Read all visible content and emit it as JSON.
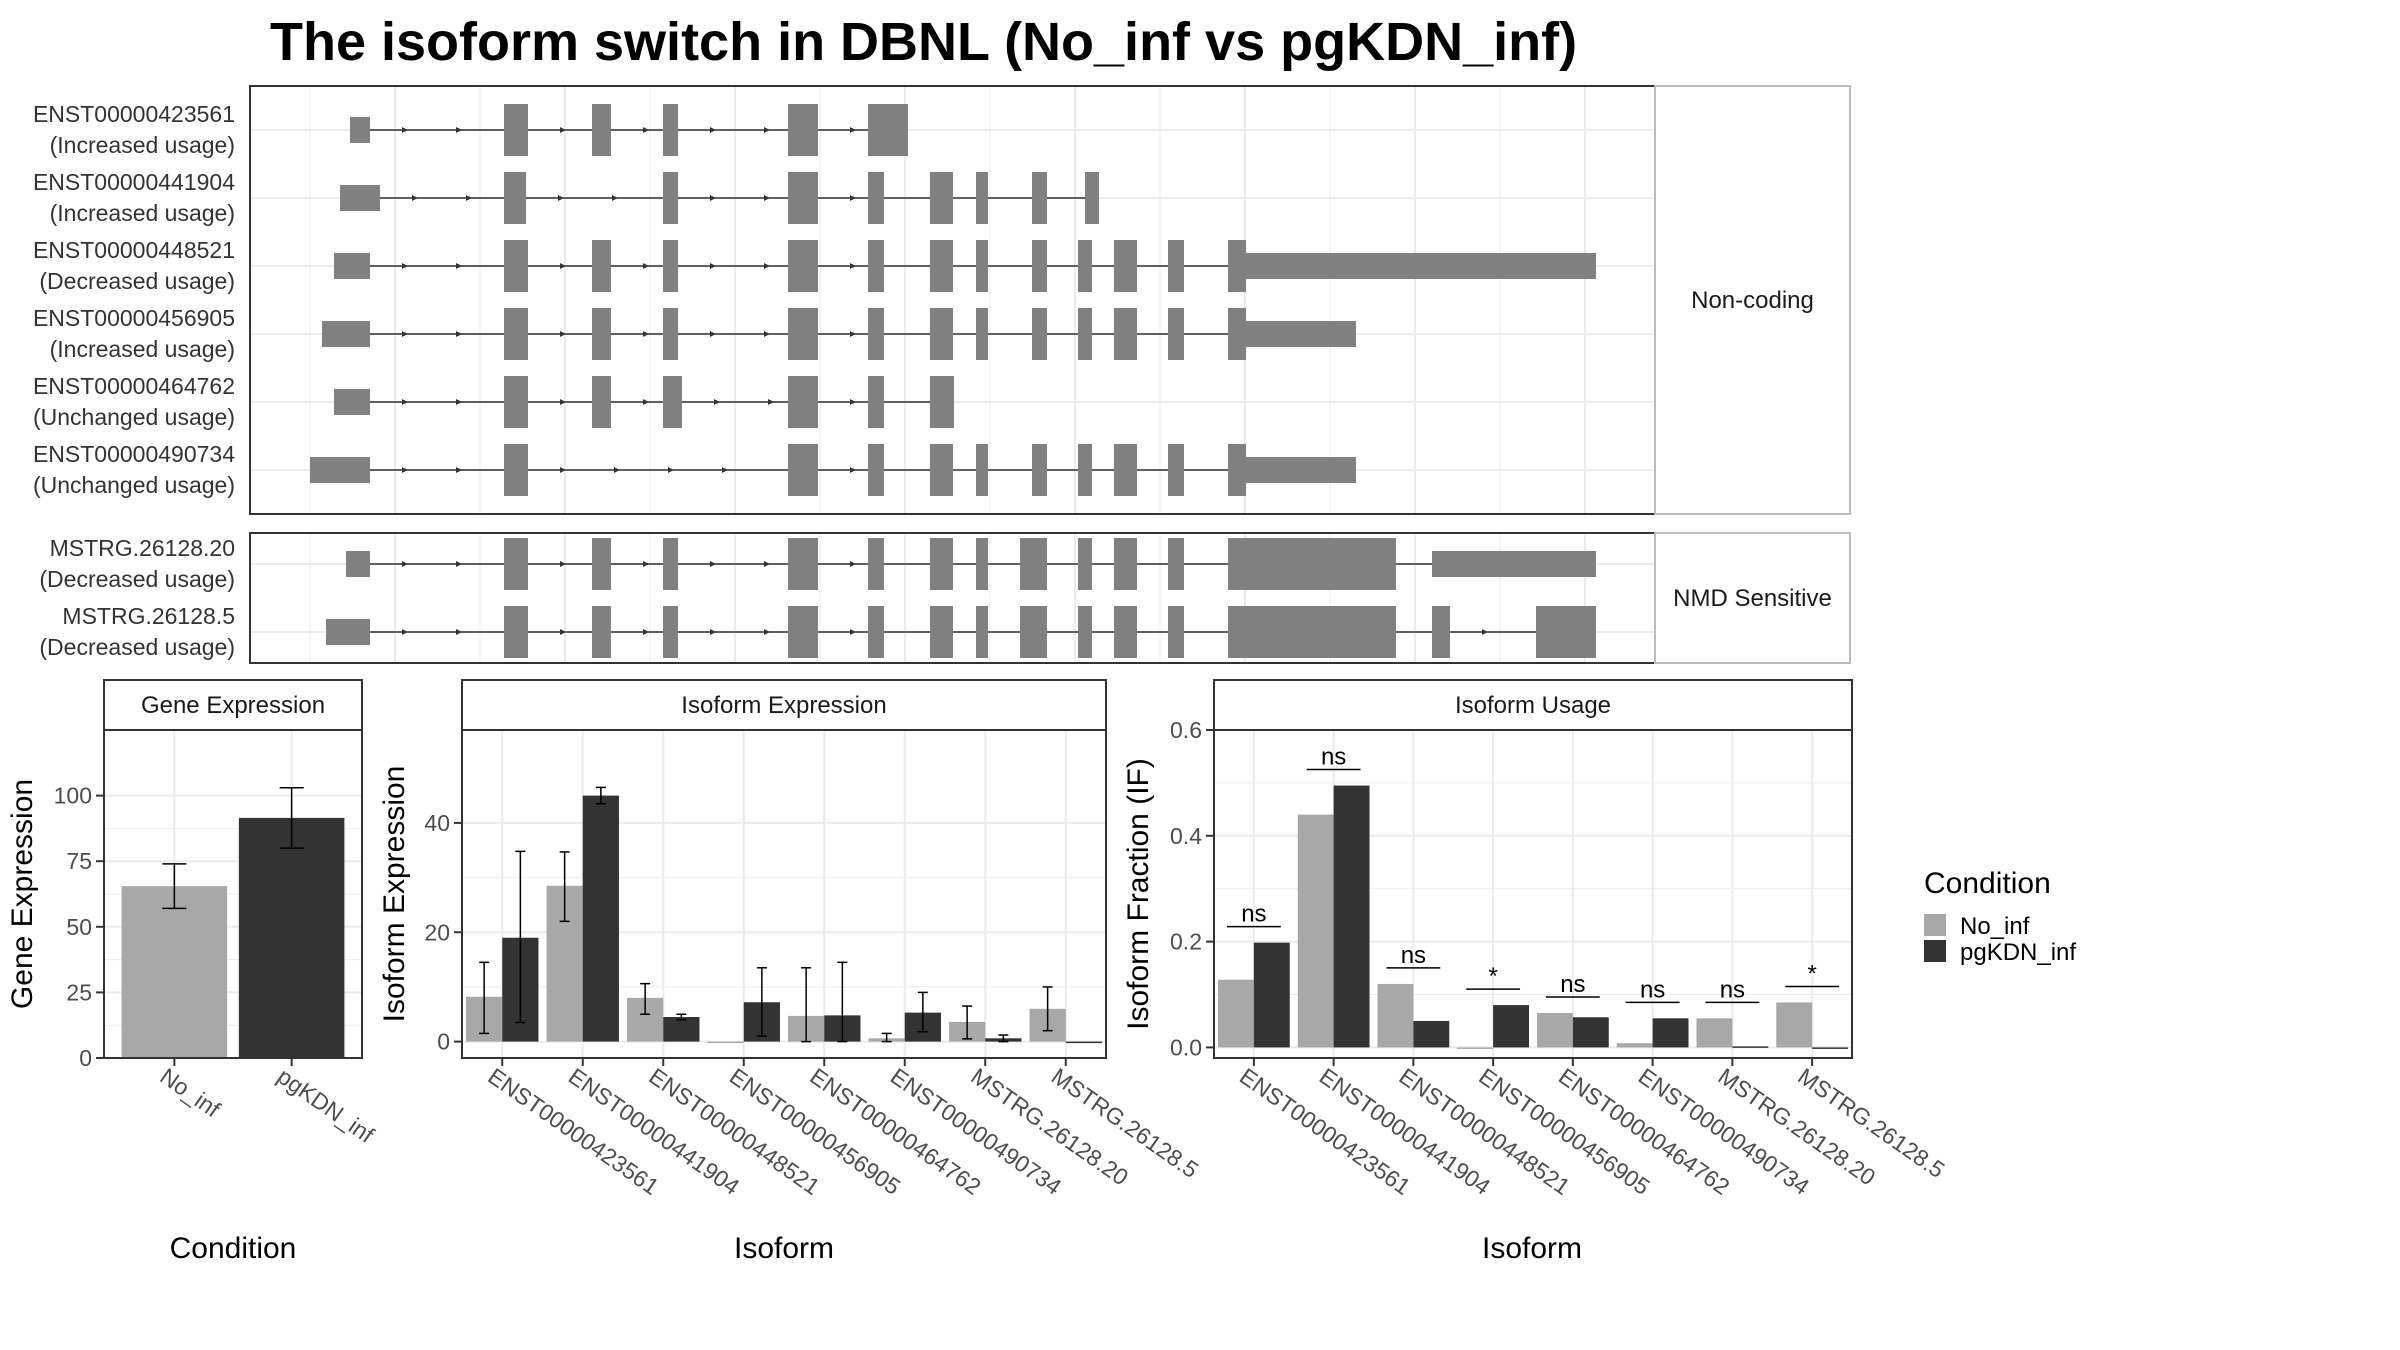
{
  "title": "The isoform switch in DBNL (No_inf vs pgKDN_inf)",
  "colors": {
    "No_inf": "#a8a8a8",
    "pgKDN_inf": "#333333",
    "exon": "#808080",
    "grid": "#ebebeb"
  },
  "structure": {
    "panels": [
      {
        "label": "Non-coding",
        "isoforms": [
          {
            "name": "ENST00000423561",
            "usage": "(Increased usage)",
            "exons": [
              [
                350,
                370
              ],
              [
                504,
                528
              ],
              [
                592,
                611
              ],
              [
                663,
                678
              ],
              [
                788,
                818
              ],
              [
                868,
                900
              ],
              [
                900,
                908
              ]
            ]
          },
          {
            "name": "ENST00000441904",
            "usage": "(Increased usage)",
            "exons": [
              [
                340,
                380
              ],
              [
                504,
                526
              ],
              [
                663,
                678
              ],
              [
                788,
                818
              ],
              [
                868,
                884
              ],
              [
                930,
                953
              ],
              [
                976,
                988
              ],
              [
                1032,
                1047
              ],
              [
                1085,
                1099
              ]
            ]
          },
          {
            "name": "ENST00000448521",
            "usage": "(Decreased usage)",
            "exons": [
              [
                334,
                370
              ],
              [
                504,
                528
              ],
              [
                592,
                611
              ],
              [
                663,
                678
              ],
              [
                788,
                818
              ],
              [
                868,
                884
              ],
              [
                930,
                953
              ],
              [
                976,
                988
              ],
              [
                1032,
                1047
              ],
              [
                1078,
                1092
              ],
              [
                1114,
                1137
              ],
              [
                1168,
                1184
              ],
              [
                1228,
                1246
              ],
              [
                1246,
                1596
              ]
            ]
          },
          {
            "name": "ENST00000456905",
            "usage": "(Increased usage)",
            "exons": [
              [
                322,
                370
              ],
              [
                504,
                528
              ],
              [
                592,
                611
              ],
              [
                663,
                678
              ],
              [
                788,
                818
              ],
              [
                868,
                884
              ],
              [
                930,
                953
              ],
              [
                976,
                988
              ],
              [
                1032,
                1047
              ],
              [
                1078,
                1092
              ],
              [
                1114,
                1137
              ],
              [
                1168,
                1184
              ],
              [
                1228,
                1246
              ],
              [
                1246,
                1356
              ]
            ]
          },
          {
            "name": "ENST00000464762",
            "usage": "(Unchanged usage)",
            "exons": [
              [
                334,
                370
              ],
              [
                504,
                528
              ],
              [
                592,
                611
              ],
              [
                663,
                682
              ],
              [
                788,
                818
              ],
              [
                868,
                884
              ],
              [
                930,
                954
              ]
            ]
          },
          {
            "name": "ENST00000490734",
            "usage": "(Unchanged usage)",
            "exons": [
              [
                310,
                370
              ],
              [
                504,
                528
              ],
              [
                788,
                818
              ],
              [
                868,
                884
              ],
              [
                930,
                953
              ],
              [
                976,
                988
              ],
              [
                1032,
                1047
              ],
              [
                1078,
                1092
              ],
              [
                1114,
                1137
              ],
              [
                1168,
                1184
              ],
              [
                1228,
                1246
              ],
              [
                1246,
                1356
              ]
            ]
          }
        ]
      },
      {
        "label": "NMD Sensitive",
        "isoforms": [
          {
            "name": "MSTRG.26128.20",
            "usage": "(Decreased usage)",
            "exons": [
              [
                346,
                370
              ],
              [
                504,
                528
              ],
              [
                592,
                611
              ],
              [
                663,
                678
              ],
              [
                788,
                818
              ],
              [
                868,
                884
              ],
              [
                930,
                953
              ],
              [
                976,
                988
              ],
              [
                1020,
                1047
              ],
              [
                1078,
                1092
              ],
              [
                1114,
                1137
              ],
              [
                1168,
                1184
              ],
              [
                1228,
                1246
              ],
              [
                1246,
                1396
              ],
              [
                1432,
                1596
              ]
            ]
          },
          {
            "name": "MSTRG.26128.5",
            "usage": "(Decreased usage)",
            "exons": [
              [
                326,
                370
              ],
              [
                504,
                528
              ],
              [
                592,
                611
              ],
              [
                663,
                678
              ],
              [
                788,
                818
              ],
              [
                868,
                884
              ],
              [
                930,
                953
              ],
              [
                976,
                988
              ],
              [
                1020,
                1047
              ],
              [
                1078,
                1092
              ],
              [
                1114,
                1137
              ],
              [
                1168,
                1184
              ],
              [
                1228,
                1246
              ],
              [
                1246,
                1396
              ],
              [
                1432,
                1450
              ],
              [
                1536,
                1596
              ]
            ]
          }
        ]
      }
    ]
  },
  "chart_data": [
    {
      "type": "bar",
      "strip": "Gene Expression",
      "xlabel": "Condition",
      "ylabel": "Gene Expression",
      "categories": [
        "No_inf",
        "pgKDN_inf"
      ],
      "values": [
        65.5,
        91.5
      ],
      "errors": [
        [
          57,
          74
        ],
        [
          80,
          103
        ]
      ],
      "ylim": [
        0,
        125
      ],
      "yticks": [
        0,
        25,
        50,
        75,
        100
      ]
    },
    {
      "type": "bar",
      "strip": "Isoform Expression",
      "xlabel": "Isoform",
      "ylabel": "Isoform Expression",
      "categories": [
        "ENST00000423561",
        "ENST00000441904",
        "ENST00000448521",
        "ENST00000456905",
        "ENST00000464762",
        "ENST00000490734",
        "MSTRG.26128.20",
        "MSTRG.26128.5"
      ],
      "series": [
        {
          "name": "No_inf",
          "values": [
            8.2,
            28.5,
            8,
            0,
            4.7,
            0.6,
            3.6,
            6
          ],
          "errors": [
            [
              1.5,
              14.5
            ],
            [
              22,
              34.7
            ],
            [
              5,
              10.6
            ],
            [
              0,
              0
            ],
            [
              0,
              13.5
            ],
            [
              0,
              1.5
            ],
            [
              0.5,
              6.5
            ],
            [
              2,
              10
            ]
          ]
        },
        {
          "name": "pgKDN_inf",
          "values": [
            19,
            45,
            4.5,
            7.2,
            4.8,
            5.3,
            0.6,
            0
          ],
          "errors": [
            [
              3.5,
              34.8
            ],
            [
              43.5,
              46.5
            ],
            [
              4,
              5
            ],
            [
              1,
              13.5
            ],
            [
              0,
              14.5
            ],
            [
              1.8,
              9
            ],
            [
              0,
              1.2
            ],
            [
              0,
              0
            ]
          ]
        }
      ],
      "ylim": [
        -3,
        57
      ],
      "yticks": [
        0,
        20,
        40
      ]
    },
    {
      "type": "bar",
      "strip": "Isoform Usage",
      "xlabel": "Isoform",
      "ylabel": "Isoform Fraction (IF)",
      "categories": [
        "ENST00000423561",
        "ENST00000441904",
        "ENST00000448521",
        "ENST00000456905",
        "ENST00000464762",
        "ENST00000490734",
        "MSTRG.26128.20",
        "MSTRG.26128.5"
      ],
      "series": [
        {
          "name": "No_inf",
          "values": [
            0.128,
            0.44,
            0.12,
            0.0,
            0.065,
            0.008,
            0.055,
            0.085
          ]
        },
        {
          "name": "pgKDN_inf",
          "values": [
            0.198,
            0.495,
            0.05,
            0.08,
            0.057,
            0.055,
            0.002,
            0.0
          ]
        }
      ],
      "significance": [
        "ns",
        "ns",
        "ns",
        "*",
        "ns",
        "ns",
        "ns",
        "*"
      ],
      "ylim": [
        -0.02,
        0.6
      ],
      "yticks": [
        0.0,
        0.2,
        0.4,
        0.6
      ]
    }
  ],
  "legend": {
    "title": "Condition",
    "items": [
      "No_inf",
      "pgKDN_inf"
    ]
  }
}
